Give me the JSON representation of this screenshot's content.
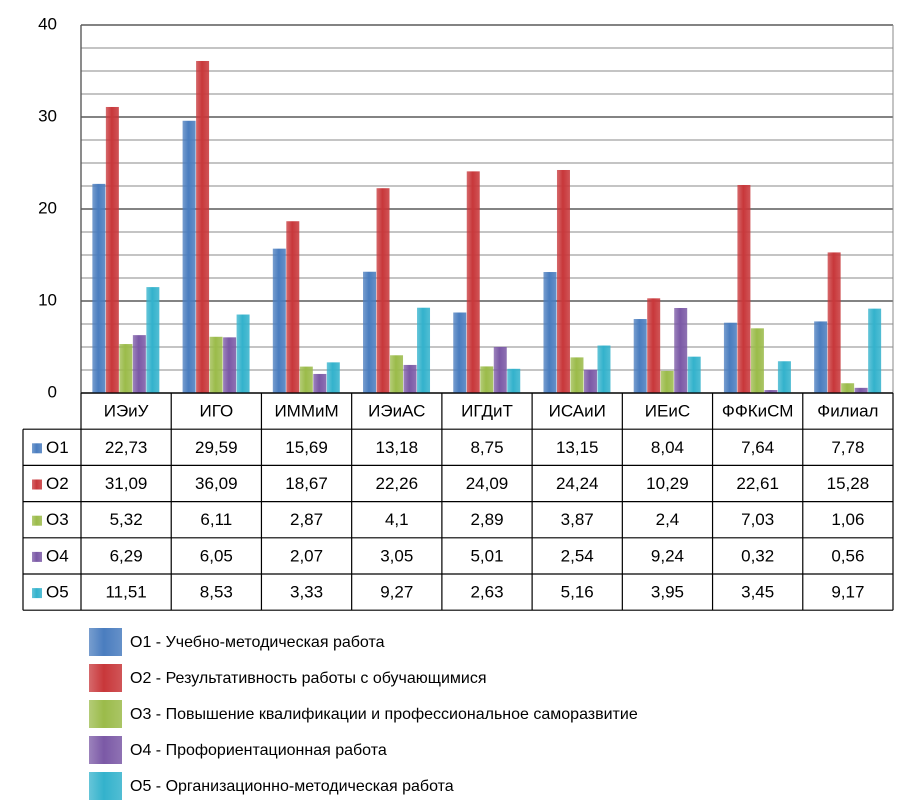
{
  "chart_data": {
    "type": "bar",
    "title": "",
    "xlabel": "",
    "ylabel": "",
    "ylim": [
      0,
      40
    ],
    "yticks": [
      0,
      10,
      20,
      30,
      40
    ],
    "grid": true,
    "legend_position": "bottom",
    "data_table": true,
    "categories": [
      "ИЭиУ",
      "ИГО",
      "ИММиМ",
      "ИЭиАС",
      "ИГДиТ",
      "ИСАиИ",
      "ИЕиС",
      "ФФКиСМ",
      "Филиал"
    ],
    "series": [
      {
        "key": "O1",
        "name": "O1",
        "legend": "O1 - Учебно-методическая  работа",
        "color": "#4a7dbf",
        "values": [
          22.73,
          29.59,
          15.69,
          13.18,
          8.75,
          13.15,
          8.04,
          7.64,
          7.78
        ],
        "labels": [
          "22,73",
          "29,59",
          "15,69",
          "13,18",
          "8,75",
          "13,15",
          "8,04",
          "7,64",
          "7,78"
        ]
      },
      {
        "key": "O2",
        "name": "O2",
        "legend": "O2 - Результативность  работы  с  обучающимися",
        "color": "#c8373a",
        "values": [
          31.09,
          36.09,
          18.67,
          22.26,
          24.09,
          24.24,
          10.29,
          22.61,
          15.28
        ],
        "labels": [
          "31,09",
          "36,09",
          "18,67",
          "22,26",
          "24,09",
          "24,24",
          "10,29",
          "22,61",
          "15,28"
        ]
      },
      {
        "key": "O3",
        "name": "O3",
        "legend": "O3 - Повышение  квалификации  и  профессиональное  саморазвитие",
        "color": "#9bbb4a",
        "values": [
          5.32,
          6.11,
          2.87,
          4.1,
          2.89,
          3.87,
          2.4,
          7.03,
          1.06
        ],
        "labels": [
          "5,32",
          "6,11",
          "2,87",
          "4,1",
          "2,89",
          "3,87",
          "2,4",
          "7,03",
          "1,06"
        ]
      },
      {
        "key": "O4",
        "name": "O4",
        "legend": "O4 - Профориентационная  работа",
        "color": "#7b59a6",
        "values": [
          6.29,
          6.05,
          2.07,
          3.05,
          5.01,
          2.54,
          9.24,
          0.32,
          0.56
        ],
        "labels": [
          "6,29",
          "6,05",
          "2,07",
          "3,05",
          "5,01",
          "2,54",
          "9,24",
          "0,32",
          "0,56"
        ]
      },
      {
        "key": "O5",
        "name": "O5",
        "legend": "O5 - Организационно-методическая  работа",
        "color": "#33b2cc",
        "values": [
          11.51,
          8.53,
          3.33,
          9.27,
          2.63,
          5.16,
          3.95,
          3.45,
          9.17
        ],
        "labels": [
          "11,51",
          "8,53",
          "3,33",
          "9,27",
          "2,63",
          "5,16",
          "3,95",
          "3,45",
          "9,17"
        ]
      }
    ]
  }
}
